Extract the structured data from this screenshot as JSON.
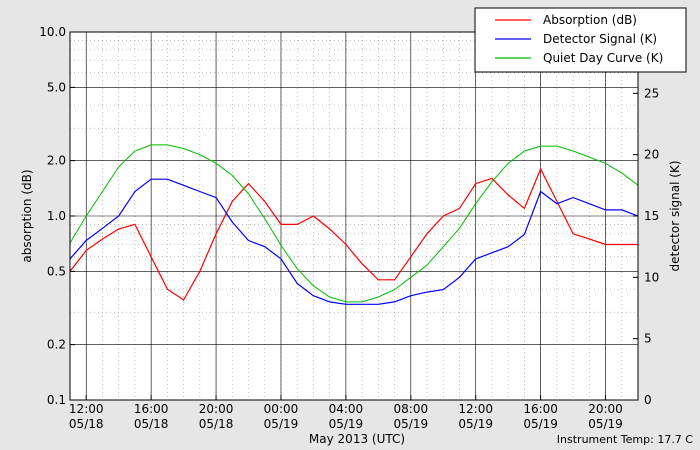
{
  "chart_data": {
    "type": "line",
    "xlabel": "May 2013 (UTC)",
    "ylabel": "absorption (dB)",
    "ylabel_right": "detector signal (K)",
    "footer": "Instrument Temp: 17.7 C",
    "x_range": [
      "05/18 11:00",
      "05/19 22:00"
    ],
    "ylim": [
      0.1,
      10.0
    ],
    "ylim_right": [
      0,
      30
    ],
    "y_scale": "log",
    "grid": true,
    "legend_position": "top-right",
    "x_ticks": [
      {
        "time": "05/18 12:00",
        "label_time": "12:00",
        "label_date": "05/18"
      },
      {
        "time": "05/18 16:00",
        "label_time": "16:00",
        "label_date": "05/18"
      },
      {
        "time": "05/18 20:00",
        "label_time": "20:00",
        "label_date": "05/18"
      },
      {
        "time": "05/19 00:00",
        "label_time": "00:00",
        "label_date": "05/19"
      },
      {
        "time": "05/19 04:00",
        "label_time": "04:00",
        "label_date": "05/19"
      },
      {
        "time": "05/19 08:00",
        "label_time": "08:00",
        "label_date": "05/19"
      },
      {
        "time": "05/19 12:00",
        "label_time": "12:00",
        "label_date": "05/19"
      },
      {
        "time": "05/19 16:00",
        "label_time": "16:00",
        "label_date": "05/19"
      },
      {
        "time": "05/19 20:00",
        "label_time": "20:00",
        "label_date": "05/19"
      }
    ],
    "y_ticks": [
      {
        "value": 0.1,
        "label": "0.1"
      },
      {
        "value": 0.2,
        "label": "0.2"
      },
      {
        "value": 0.5,
        "label": "0.5"
      },
      {
        "value": 1.0,
        "label": "1.0"
      },
      {
        "value": 2.0,
        "label": "2.0"
      },
      {
        "value": 5.0,
        "label": "5.0"
      },
      {
        "value": 10.0,
        "label": "10.0"
      }
    ],
    "y_ticks_right": [
      {
        "value": 0,
        "label": "0"
      },
      {
        "value": 5,
        "label": "5"
      },
      {
        "value": 10,
        "label": "10"
      },
      {
        "value": 15,
        "label": "15"
      },
      {
        "value": 20,
        "label": "20"
      },
      {
        "value": 25,
        "label": "25"
      }
    ],
    "series": [
      {
        "name": "Absorption (dB)",
        "axis": "left",
        "color": "#ff0000",
        "x": [
          "05/18 11:00",
          "05/18 12:00",
          "05/18 13:00",
          "05/18 14:00",
          "05/18 15:00",
          "05/18 16:00",
          "05/18 17:00",
          "05/18 18:00",
          "05/18 19:00",
          "05/18 20:00",
          "05/18 21:00",
          "05/18 22:00",
          "05/18 23:00",
          "05/19 00:00",
          "05/19 01:00",
          "05/19 02:00",
          "05/19 03:00",
          "05/19 04:00",
          "05/19 05:00",
          "05/19 06:00",
          "05/19 07:00",
          "05/19 08:00",
          "05/19 09:00",
          "05/19 10:00",
          "05/19 11:00",
          "05/19 12:00",
          "05/19 13:00",
          "05/19 14:00",
          "05/19 15:00",
          "05/19 16:00",
          "05/19 17:00",
          "05/19 18:00",
          "05/19 19:00",
          "05/19 20:00",
          "05/19 21:00",
          "05/19 22:00"
        ],
        "y": [
          0.5,
          0.65,
          0.75,
          0.85,
          0.9,
          0.6,
          0.4,
          0.35,
          0.5,
          0.8,
          1.2,
          1.5,
          1.2,
          0.9,
          0.9,
          1.0,
          0.85,
          0.7,
          0.55,
          0.45,
          0.45,
          0.6,
          0.8,
          1.0,
          1.1,
          1.5,
          1.6,
          1.3,
          1.1,
          1.8,
          1.2,
          0.8,
          0.75,
          0.7,
          0.7,
          0.7
        ]
      },
      {
        "name": "Detector Signal (K)",
        "axis": "right",
        "color": "#0000ff",
        "x": [
          "05/18 11:00",
          "05/18 12:00",
          "05/18 13:00",
          "05/18 14:00",
          "05/18 15:00",
          "05/18 16:00",
          "05/18 17:00",
          "05/18 18:00",
          "05/18 19:00",
          "05/18 20:00",
          "05/18 21:00",
          "05/18 22:00",
          "05/18 23:00",
          "05/19 00:00",
          "05/19 01:00",
          "05/19 02:00",
          "05/19 03:00",
          "05/19 04:00",
          "05/19 05:00",
          "05/19 06:00",
          "05/19 07:00",
          "05/19 08:00",
          "05/19 09:00",
          "05/19 10:00",
          "05/19 11:00",
          "05/19 12:00",
          "05/19 13:00",
          "05/19 14:00",
          "05/19 15:00",
          "05/19 16:00",
          "05/19 17:00",
          "05/19 18:00",
          "05/19 19:00",
          "05/19 20:00",
          "05/19 21:00",
          "05/19 22:00"
        ],
        "y": [
          11.5,
          13,
          14,
          15,
          17,
          18,
          18,
          17.5,
          17,
          16.5,
          14.5,
          13,
          12.5,
          11.5,
          9.5,
          8.5,
          8,
          7.8,
          7.8,
          7.8,
          8,
          8.5,
          8.8,
          9,
          10,
          11.5,
          12,
          12.5,
          13.5,
          17,
          16,
          16.5,
          16,
          15.5,
          15.5,
          15
        ]
      },
      {
        "name": "Quiet Day Curve (K)",
        "axis": "right",
        "color": "#00bb00",
        "x": [
          "05/18 11:00",
          "05/18 12:00",
          "05/18 13:00",
          "05/18 14:00",
          "05/18 15:00",
          "05/18 16:00",
          "05/18 17:00",
          "05/18 18:00",
          "05/18 19:00",
          "05/18 20:00",
          "05/18 21:00",
          "05/18 22:00",
          "05/18 23:00",
          "05/19 00:00",
          "05/19 01:00",
          "05/19 02:00",
          "05/19 03:00",
          "05/19 04:00",
          "05/19 05:00",
          "05/19 06:00",
          "05/19 07:00",
          "05/19 08:00",
          "05/19 09:00",
          "05/19 10:00",
          "05/19 11:00",
          "05/19 12:00",
          "05/19 13:00",
          "05/19 14:00",
          "05/19 15:00",
          "05/19 16:00",
          "05/19 17:00",
          "05/19 18:00",
          "05/19 19:00",
          "05/19 20:00",
          "05/19 21:00",
          "05/19 22:00"
        ],
        "y": [
          12.8,
          15,
          17,
          19,
          20.3,
          20.8,
          20.8,
          20.5,
          20,
          19.3,
          18.3,
          16.8,
          14.8,
          12.6,
          10.7,
          9.3,
          8.4,
          8,
          8,
          8.4,
          9,
          10,
          11,
          12.5,
          14,
          16,
          17.8,
          19.3,
          20.3,
          20.7,
          20.7,
          20.3,
          19.8,
          19.3,
          18.5,
          17.5
        ]
      }
    ]
  }
}
